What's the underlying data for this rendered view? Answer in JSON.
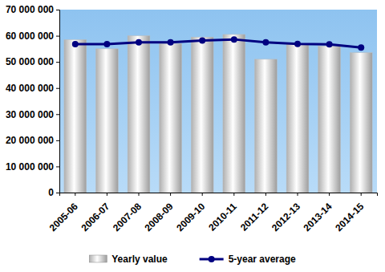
{
  "chart_data": {
    "type": "bar",
    "categories": [
      "2005-06",
      "2006-07",
      "2007-08",
      "2008-09",
      "2009-10",
      "2010-11",
      "2011-12",
      "2012-13",
      "2013-14",
      "2014-15"
    ],
    "series": [
      {
        "name": "Yearly value",
        "type": "bar",
        "color": "#d9d9d9",
        "values": [
          58500000,
          55000000,
          60000000,
          57000000,
          59500000,
          60500000,
          51000000,
          57000000,
          56000000,
          53500000
        ]
      },
      {
        "name": "5-year average",
        "type": "line",
        "color": "#000080",
        "marker": "circle",
        "values": [
          56800000,
          56800000,
          57500000,
          57500000,
          58200000,
          58600000,
          57500000,
          56900000,
          56700000,
          55500000
        ]
      }
    ],
    "ylim": [
      0,
      70000000
    ],
    "yticks": [
      0,
      {
        "value": 10000000,
        "label": "10 000 000"
      },
      {
        "value": 20000000,
        "label": "20 000 000"
      },
      {
        "value": 30000000,
        "label": "30 000 000"
      },
      {
        "value": 40000000,
        "label": "40 000 000"
      },
      {
        "value": 50000000,
        "label": "50 000 000"
      },
      {
        "value": 60000000,
        "label": "60 000 000"
      },
      {
        "value": 70000000,
        "label": "70 000 000"
      }
    ],
    "grid": false,
    "legend": "bottom"
  }
}
